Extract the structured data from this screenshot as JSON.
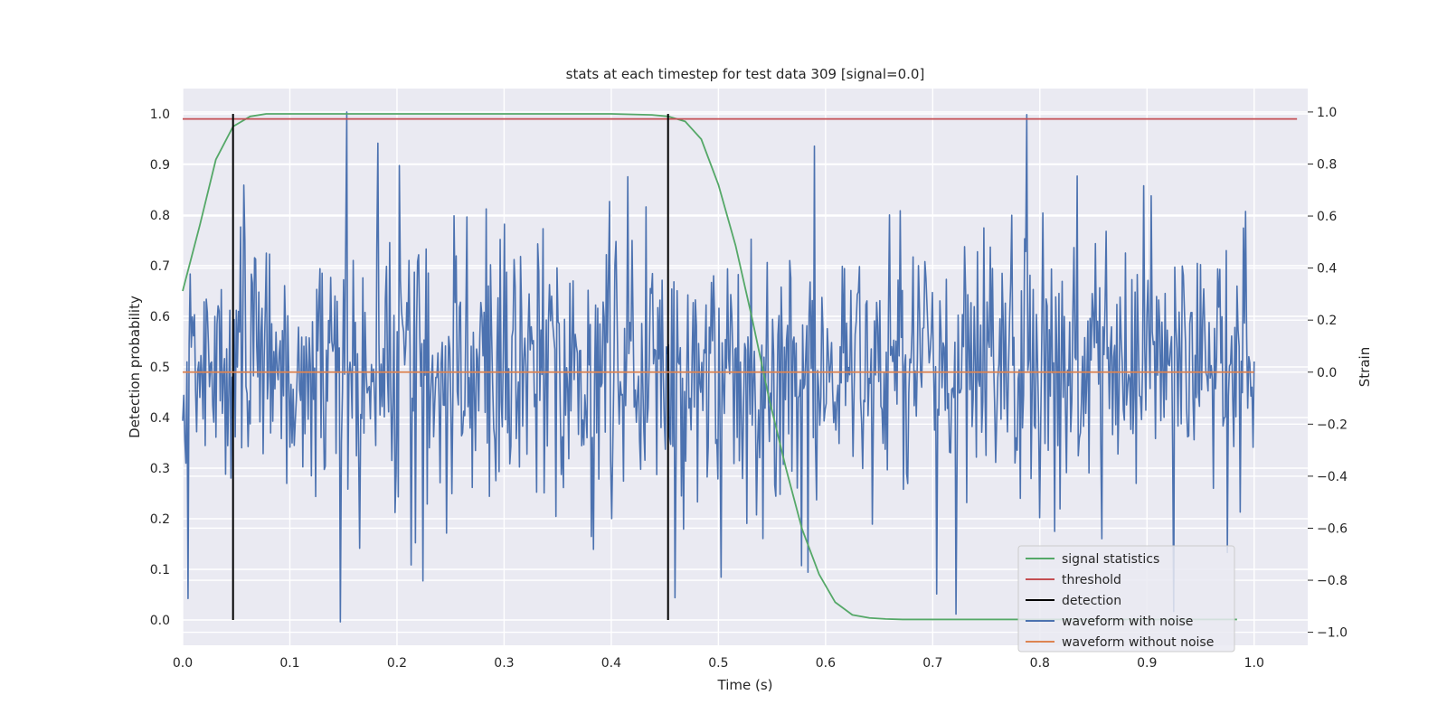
{
  "chart_data": {
    "type": "line",
    "title": "stats at each timestep for test data 309 [signal=0.0]",
    "xlabel": "Time (s)",
    "ylabel": "Detection probability",
    "ylabel_right": "Strain",
    "xlim": [
      0.0,
      1.05
    ],
    "ylim": [
      -0.05,
      1.05
    ],
    "ylim_right": [
      -1.05,
      1.09
    ],
    "x_ticks": [
      "0.0",
      "0.1",
      "0.2",
      "0.3",
      "0.4",
      "0.5",
      "0.6",
      "0.7",
      "0.8",
      "0.9",
      "1.0"
    ],
    "y_ticks": [
      "0.0",
      "0.1",
      "0.2",
      "0.3",
      "0.4",
      "0.5",
      "0.6",
      "0.7",
      "0.8",
      "0.9",
      "1.0"
    ],
    "y_right_ticks": [
      "−1.0",
      "−0.8",
      "−0.6",
      "−0.4",
      "−0.2",
      "0.0",
      "0.2",
      "0.4",
      "0.6",
      "0.8",
      "1.0"
    ],
    "grid": true,
    "legend_position": "lower right",
    "colors": {
      "signal_statistics": "#55a868",
      "threshold": "#c44e52",
      "detection": "#000000",
      "waveform_with_noise": "#4c72b0",
      "waveform_without_noise": "#dd8452",
      "plot_background": "#eaeaf2"
    },
    "series": [
      {
        "name": "signal statistics",
        "axis": "left",
        "x": [
          0.0,
          0.016,
          0.031,
          0.047,
          0.063,
          0.078,
          0.1,
          0.2,
          0.3,
          0.4,
          0.438,
          0.453,
          0.469,
          0.484,
          0.5,
          0.516,
          0.531,
          0.547,
          0.563,
          0.578,
          0.594,
          0.609,
          0.625,
          0.641,
          0.656,
          0.672,
          0.7,
          0.8,
          0.9,
          0.984
        ],
        "values": [
          0.65,
          0.78,
          0.91,
          0.975,
          0.995,
          1.0,
          1.0,
          1.0,
          1.0,
          1.0,
          0.998,
          0.995,
          0.985,
          0.95,
          0.86,
          0.74,
          0.6,
          0.44,
          0.3,
          0.18,
          0.09,
          0.035,
          0.01,
          0.004,
          0.002,
          0.001,
          0.001,
          0.001,
          0.001,
          0.001
        ]
      },
      {
        "name": "threshold",
        "axis": "left",
        "x": [
          0.0,
          1.04
        ],
        "values": [
          0.99,
          0.99
        ]
      },
      {
        "name": "detection",
        "axis": "left",
        "segments": [
          {
            "x": 0.047,
            "y": [
              0.0,
              1.0
            ]
          },
          {
            "x": 0.453,
            "y": [
              0.0,
              1.0
            ]
          }
        ]
      },
      {
        "name": "waveform with noise",
        "axis": "right",
        "x_range": [
          0.0,
          1.0
        ],
        "num_points": 1000,
        "peaks": [
          {
            "x": 0.005,
            "y": -0.87
          },
          {
            "x": 0.147,
            "y": -0.96
          },
          {
            "x": 0.153,
            "y": 1.0
          },
          {
            "x": 0.182,
            "y": 0.88
          },
          {
            "x": 0.722,
            "y": -0.93
          },
          {
            "x": 0.788,
            "y": 0.99
          },
          {
            "x": 0.925,
            "y": -0.92
          }
        ],
        "std_dev": 0.27
      },
      {
        "name": "waveform without noise",
        "axis": "right",
        "x": [
          0.0,
          1.0
        ],
        "values": [
          0.0,
          0.0
        ]
      }
    ]
  }
}
